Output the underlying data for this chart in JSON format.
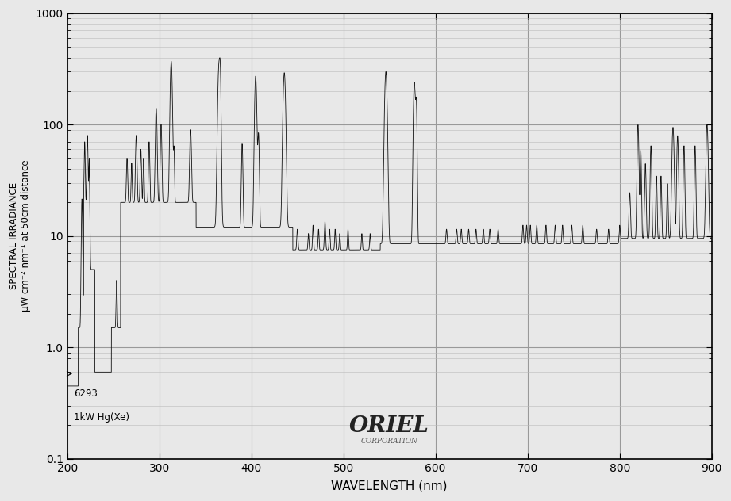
{
  "xlabel": "WAVELENGTH (nm)",
  "ylabel": "SPECTRAL IRRADIANCE\nμW cm⁻² nm⁻¹ at 50cm distance",
  "xlim": [
    200,
    900
  ],
  "ylim": [
    0.1,
    1000
  ],
  "annotation_text1": "6293",
  "annotation_text2": "1kW Hg(Xe)",
  "oriel_text": "ORIEL",
  "oriel_sub": "CORPORATION",
  "line_color": "#111111",
  "background_color": "#e8e8e8",
  "grid_major_color": "#999999",
  "grid_minor_color": "#bbbbbb"
}
